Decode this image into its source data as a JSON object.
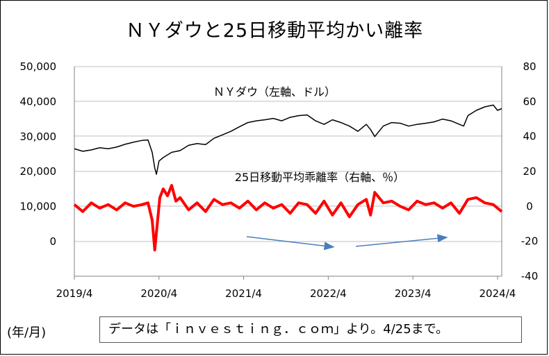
{
  "title": "ＮＹダウと25日移動平均かい離率",
  "unit_note": "(年/月)",
  "source_note": "データは「ｉｎｖｅｓｔｉｎｇ．ｃｏｍ」より。4/25まで。",
  "colors": {
    "dow": "#000000",
    "deviation": "#ff0000",
    "arrow": "#4a7ebb",
    "grid": "#bfbfbf"
  },
  "chart_data": {
    "type": "line",
    "title": "ＮＹダウと25日移動平均かい離率",
    "x_tick_labels": [
      "2019/4",
      "2020/4",
      "2021/4",
      "2022/4",
      "2023/4",
      "2024/4"
    ],
    "x_range": [
      "2019/4",
      "2024/4"
    ],
    "y_left": {
      "ticks": [
        "50,000",
        "40,000",
        "30,000",
        "20,000",
        "10,000",
        "0"
      ],
      "ylim": [
        0,
        50000
      ]
    },
    "y_right": {
      "ticks": [
        "80",
        "60",
        "40",
        "20",
        "0",
        "-20",
        "-40"
      ],
      "ylim": [
        -40,
        80
      ]
    },
    "grid": "horizontal",
    "series": [
      {
        "name": "ＮＹダウ（左軸、ドル）",
        "axis": "left",
        "color": "#000000",
        "x": [
          2019.25,
          2019.35,
          2019.45,
          2019.55,
          2019.65,
          2019.75,
          2019.85,
          2019.95,
          2020.05,
          2020.12,
          2020.17,
          2020.2,
          2020.22,
          2020.25,
          2020.3,
          2020.4,
          2020.5,
          2020.6,
          2020.7,
          2020.8,
          2020.9,
          2021.0,
          2021.1,
          2021.2,
          2021.3,
          2021.4,
          2021.5,
          2021.6,
          2021.7,
          2021.8,
          2021.9,
          2022.0,
          2022.1,
          2022.2,
          2022.3,
          2022.4,
          2022.5,
          2022.6,
          2022.7,
          2022.75,
          2022.8,
          2022.9,
          2023.0,
          2023.1,
          2023.2,
          2023.3,
          2023.4,
          2023.5,
          2023.6,
          2023.7,
          2023.8,
          2023.85,
          2023.9,
          2024.0,
          2024.1,
          2024.2,
          2024.25,
          2024.3
        ],
        "values": [
          26500,
          25800,
          26200,
          26800,
          26500,
          27000,
          27800,
          28400,
          28900,
          29000,
          25500,
          21000,
          19200,
          23000,
          24000,
          25500,
          26000,
          27500,
          28000,
          27700,
          29500,
          30500,
          31500,
          32800,
          34000,
          34500,
          34800,
          35200,
          34500,
          35500,
          36000,
          36200,
          34500,
          33500,
          34800,
          34000,
          33000,
          31500,
          33500,
          32000,
          30000,
          33000,
          34000,
          33800,
          33000,
          33500,
          33800,
          34200,
          35000,
          34500,
          33500,
          33000,
          36000,
          37500,
          38500,
          39000,
          37500,
          38000
        ]
      },
      {
        "name": "25日移動平均乖離率（右軸、％）",
        "axis": "right",
        "color": "#ff0000",
        "x": [
          2019.25,
          2019.35,
          2019.45,
          2019.55,
          2019.65,
          2019.75,
          2019.85,
          2019.95,
          2020.05,
          2020.12,
          2020.17,
          2020.2,
          2020.22,
          2020.26,
          2020.3,
          2020.35,
          2020.4,
          2020.45,
          2020.5,
          2020.6,
          2020.7,
          2020.8,
          2020.9,
          2021.0,
          2021.1,
          2021.2,
          2021.3,
          2021.4,
          2021.5,
          2021.6,
          2021.7,
          2021.8,
          2021.9,
          2022.0,
          2022.1,
          2022.2,
          2022.3,
          2022.4,
          2022.5,
          2022.6,
          2022.7,
          2022.75,
          2022.8,
          2022.9,
          2023.0,
          2023.1,
          2023.2,
          2023.3,
          2023.4,
          2023.5,
          2023.6,
          2023.7,
          2023.8,
          2023.9,
          2024.0,
          2024.1,
          2024.2,
          2024.25,
          2024.3
        ],
        "values": [
          1,
          -3,
          2,
          -1,
          1,
          -2,
          2,
          0,
          1,
          2,
          -8,
          -25,
          -15,
          5,
          10,
          6,
          12,
          3,
          5,
          -2,
          2,
          -3,
          4,
          1,
          2,
          -1,
          3,
          -2,
          2,
          -1,
          1,
          -4,
          2,
          1,
          -4,
          3,
          -5,
          2,
          -6,
          1,
          4,
          -5,
          8,
          2,
          3,
          0,
          -2,
          3,
          1,
          2,
          -1,
          2,
          -4,
          4,
          5,
          2,
          1,
          -1,
          -3
        ]
      }
    ],
    "annotations": [
      {
        "text": "ＮＹダウ（左軸、ドル）"
      },
      {
        "text": "25日移動平均乖離率（右軸、％）"
      }
    ]
  }
}
